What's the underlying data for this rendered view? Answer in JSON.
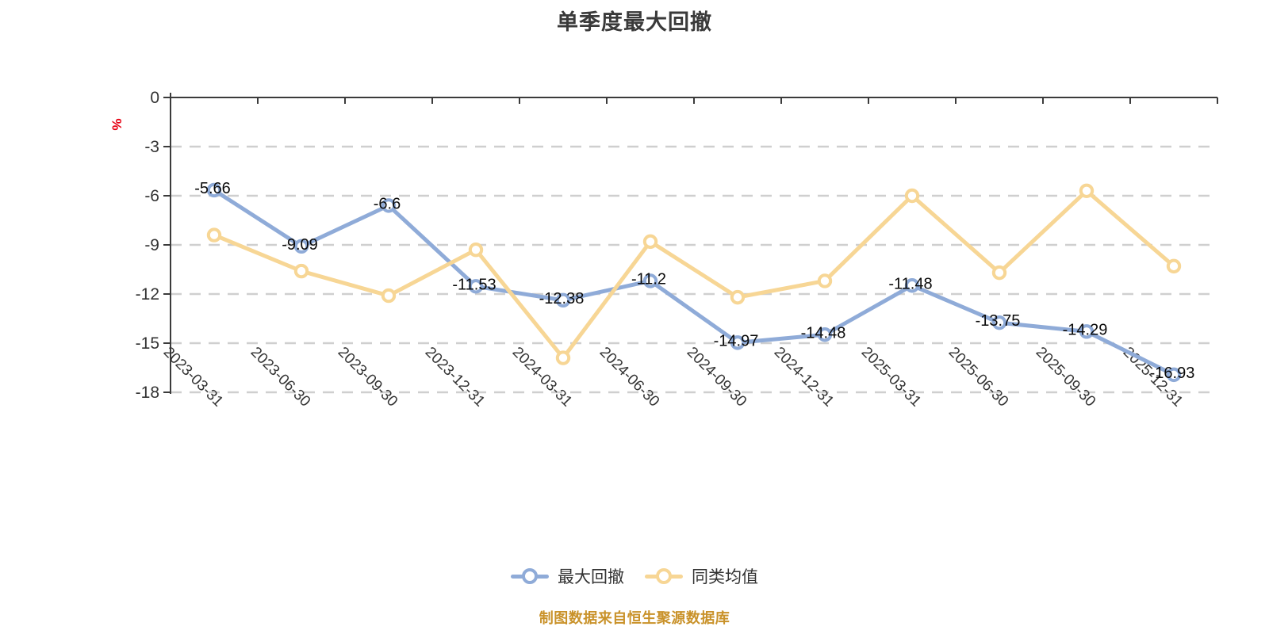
{
  "title": "单季度最大回撤",
  "source_note": "制图数据来自恒生聚源数据库",
  "y_axis": {
    "unit": "%",
    "tick_labels": [
      "0",
      "-3",
      "-6",
      "-9",
      "-12",
      "-15",
      "-18"
    ],
    "min": -18,
    "max": 0,
    "step": 3
  },
  "legend": {
    "items": [
      {
        "label": "最大回撤"
      },
      {
        "label": "同类均值"
      }
    ]
  },
  "colors": {
    "axis": "#3b3b3b",
    "gridline": "#cfcfcf",
    "tick_label": "#333333",
    "value_label": "#0a0a0a",
    "title": "#3a3a3a",
    "unit_label": "#e60012",
    "source_note": "#c9922a",
    "marker_fill": "#ffffff"
  },
  "chart_data": {
    "type": "line",
    "title": "单季度最大回撤",
    "categories": [
      "2023-03-31",
      "2023-06-30",
      "2023-09-30",
      "2023-12-31",
      "2024-03-31",
      "2024-06-30",
      "2024-09-30",
      "2024-12-31",
      "2025-03-31",
      "2025-06-30",
      "2025-09-30",
      "2025-12-31"
    ],
    "series": [
      {
        "name": "最大回撤",
        "color": "#8fabd8",
        "labeled": true,
        "values": [
          -5.66,
          -9.09,
          -6.6,
          -11.53,
          -12.38,
          -11.2,
          -14.97,
          -14.48,
          -11.48,
          -13.75,
          -14.29,
          -16.93
        ]
      },
      {
        "name": "同类均值",
        "color": "#f7d695",
        "labeled": false,
        "values": [
          -8.4,
          -10.6,
          -12.1,
          -9.3,
          -15.9,
          -8.8,
          -12.2,
          -11.2,
          -6.0,
          -10.7,
          -5.7,
          -10.3
        ]
      }
    ],
    "xlabel": "",
    "ylabel": "%",
    "ylim": [
      -18,
      0
    ],
    "y_tick_step": 3,
    "grid": "horizontal-dashed",
    "legend_position": "bottom"
  }
}
